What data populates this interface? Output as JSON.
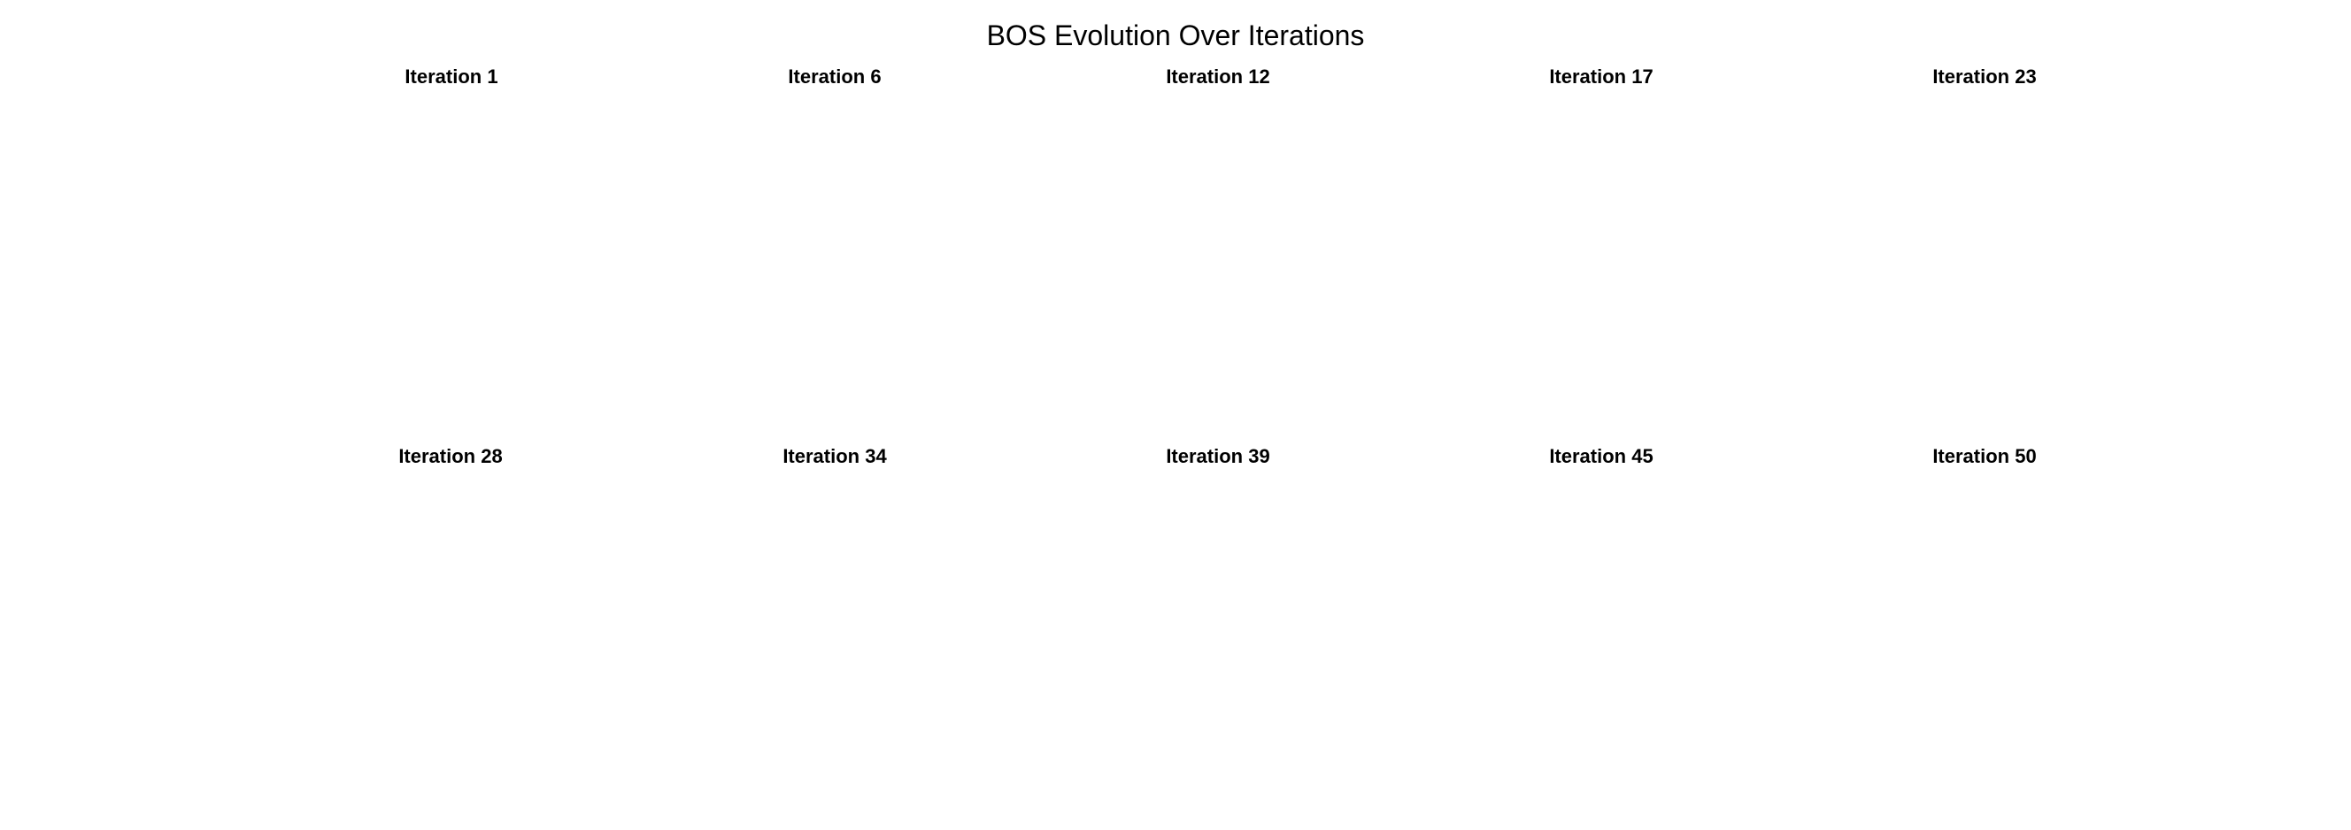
{
  "title": "BOS Evolution Over Iterations",
  "colors": {
    "left": "#ff5a5a",
    "top": "#9b2cf0",
    "right": "#3de4f0",
    "bottom": "#8ce634",
    "upper_arm": "#8ce634",
    "lower_arm": "#9b2cf0",
    "inner": "#7fe6f0"
  },
  "panels": [
    {
      "label": "Iteration 1",
      "intensity": 0.0
    },
    {
      "label": "Iteration 6",
      "intensity": 0.35
    },
    {
      "label": "Iteration 12",
      "intensity": 0.75
    },
    {
      "label": "Iteration 17",
      "intensity": 0.8
    },
    {
      "label": "Iteration 23",
      "intensity": 0.8
    },
    {
      "label": "Iteration 28",
      "intensity": 0.8
    },
    {
      "label": "Iteration 34",
      "intensity": 0.8
    },
    {
      "label": "Iteration 39",
      "intensity": 0.8
    },
    {
      "label": "Iteration 45",
      "intensity": 0.8
    },
    {
      "label": "Iteration 50",
      "intensity": 0.8
    }
  ]
}
